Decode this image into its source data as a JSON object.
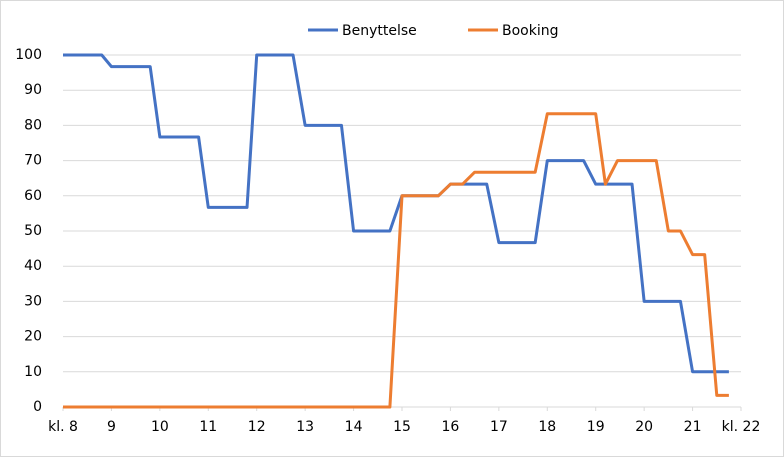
{
  "chart_data": {
    "type": "line",
    "series": [
      {
        "name": "Benyttelse",
        "color": "#4472c4",
        "x": [
          8,
          8.8,
          9,
          9.8,
          10,
          10.8,
          11,
          11.8,
          12,
          12.75,
          13,
          13.75,
          14,
          14.75,
          15,
          15.75,
          16,
          16.75,
          17,
          17.75,
          18,
          18.75,
          19,
          19.75,
          20,
          20.75,
          21,
          21.75
        ],
        "values": [
          100,
          100,
          96.7,
          96.7,
          76.7,
          76.7,
          56.7,
          56.7,
          100,
          100,
          80,
          80,
          50,
          50,
          60,
          60,
          63.3,
          63.3,
          46.7,
          46.7,
          70,
          70,
          63.3,
          63.3,
          30,
          30,
          10,
          10
        ]
      },
      {
        "name": "Booking",
        "color": "#ed7d31",
        "x": [
          8,
          14.75,
          15,
          15.75,
          16,
          16.25,
          16.5,
          17.75,
          18,
          19,
          19.2,
          19.45,
          20.25,
          20.5,
          20.75,
          21,
          21.25,
          21.5,
          21.75
        ],
        "values": [
          0,
          0,
          60,
          60,
          63.3,
          63.3,
          66.7,
          66.7,
          83.3,
          83.3,
          63.3,
          70,
          70,
          50,
          50,
          43.3,
          43.3,
          3.3,
          3.3
        ]
      }
    ],
    "xlim": [
      8,
      22
    ],
    "xticks": [
      {
        "value": 8,
        "label": "kl. 8"
      },
      9,
      10,
      11,
      12,
      13,
      14,
      15,
      16,
      17,
      18,
      19,
      20,
      21,
      {
        "value": 22,
        "label": "kl. 22"
      }
    ],
    "ylim": [
      0,
      100
    ],
    "yticks": [
      0,
      10,
      20,
      30,
      40,
      50,
      60,
      70,
      80,
      90,
      100
    ],
    "grid": true,
    "legend": "top"
  }
}
